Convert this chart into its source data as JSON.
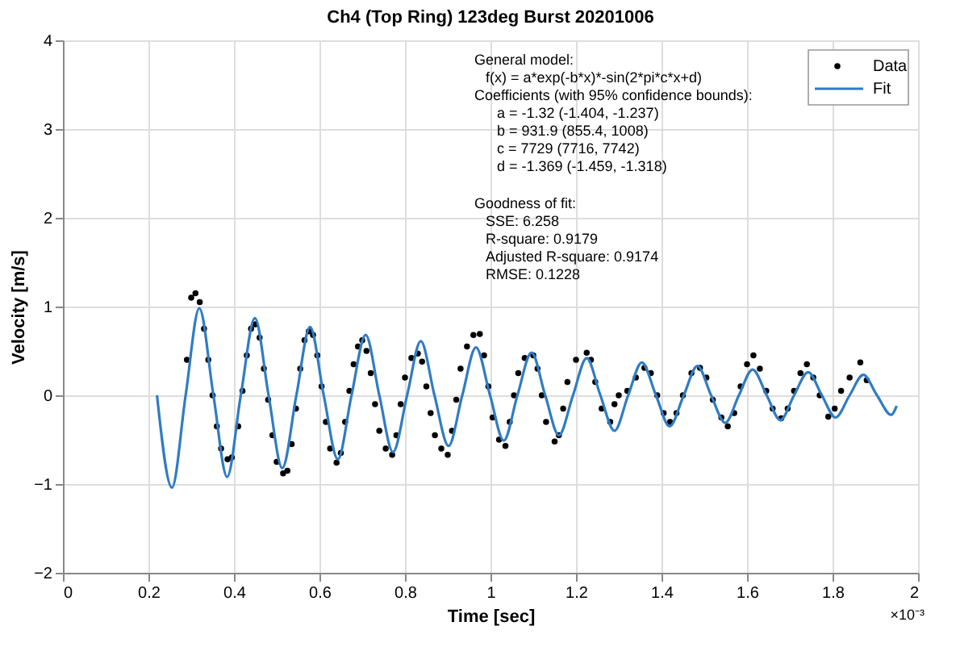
{
  "chart_data": {
    "type": "line",
    "title": "Ch4 (Top Ring) 123deg Burst 20201006",
    "xlabel": "Time [sec]",
    "ylabel": "Velocity [m/s]",
    "xlim": [
      0,
      2
    ],
    "xticks": [
      0,
      0.2,
      0.4,
      0.6,
      0.8,
      1,
      1.2,
      1.4,
      1.6,
      1.8,
      2
    ],
    "ylim": [
      -2,
      4
    ],
    "yticks": [
      -2,
      -1,
      0,
      1,
      2,
      3,
      4
    ],
    "grid": true,
    "legend": "top right",
    "series": [
      {
        "name": "Data",
        "type": "scatter",
        "color": "#000000",
        "x": [
          0.29,
          0.3,
          0.31,
          0.32,
          0.33,
          0.34,
          0.35,
          0.36,
          0.37,
          0.385,
          0.395,
          0.41,
          0.42,
          0.43,
          0.44,
          0.45,
          0.46,
          0.47,
          0.48,
          0.49,
          0.5,
          0.515,
          0.525,
          0.535,
          0.545,
          0.555,
          0.565,
          0.575,
          0.585,
          0.595,
          0.605,
          0.615,
          0.625,
          0.64,
          0.65,
          0.66,
          0.67,
          0.68,
          0.69,
          0.7,
          0.71,
          0.72,
          0.73,
          0.74,
          0.755,
          0.77,
          0.78,
          0.79,
          0.8,
          0.815,
          0.83,
          0.84,
          0.85,
          0.86,
          0.87,
          0.885,
          0.9,
          0.91,
          0.92,
          0.93,
          0.945,
          0.96,
          0.975,
          0.985,
          0.995,
          1.005,
          1.02,
          1.035,
          1.045,
          1.055,
          1.065,
          1.08,
          1.1,
          1.11,
          1.12,
          1.13,
          1.15,
          1.16,
          1.17,
          1.18,
          1.2,
          1.225,
          1.235,
          1.245,
          1.26,
          1.28,
          1.29,
          1.3,
          1.32,
          1.34,
          1.36,
          1.375,
          1.39,
          1.405,
          1.42,
          1.435,
          1.45,
          1.47,
          1.49,
          1.505,
          1.52,
          1.54,
          1.555,
          1.57,
          1.585,
          1.6,
          1.615,
          1.63,
          1.645,
          1.66,
          1.68,
          1.695,
          1.71,
          1.725,
          1.74,
          1.755,
          1.77,
          1.79,
          1.805,
          1.82,
          1.84,
          1.865,
          1.88
        ],
        "values": [
          0.4,
          1.1,
          1.15,
          1.05,
          0.75,
          0.4,
          0.0,
          -0.35,
          -0.6,
          -0.72,
          -0.7,
          -0.35,
          0.05,
          0.45,
          0.75,
          0.8,
          0.65,
          0.3,
          -0.05,
          -0.45,
          -0.75,
          -0.88,
          -0.85,
          -0.55,
          -0.15,
          0.3,
          0.62,
          0.72,
          0.68,
          0.45,
          0.1,
          -0.3,
          -0.6,
          -0.76,
          -0.65,
          -0.3,
          0.05,
          0.35,
          0.55,
          0.62,
          0.5,
          0.25,
          -0.1,
          -0.4,
          -0.6,
          -0.67,
          -0.45,
          -0.1,
          0.2,
          0.42,
          0.47,
          0.38,
          0.1,
          -0.2,
          -0.45,
          -0.6,
          -0.67,
          -0.4,
          -0.05,
          0.3,
          0.55,
          0.68,
          0.69,
          0.45,
          0.1,
          -0.25,
          -0.5,
          -0.57,
          -0.3,
          0.0,
          0.25,
          0.42,
          0.45,
          0.3,
          0.0,
          -0.3,
          -0.52,
          -0.45,
          -0.15,
          0.15,
          0.4,
          0.48,
          0.4,
          0.15,
          -0.15,
          -0.3,
          -0.1,
          0.0,
          0.05,
          0.2,
          0.31,
          0.25,
          0.0,
          -0.2,
          -0.3,
          -0.2,
          0.0,
          0.25,
          0.31,
          0.2,
          -0.05,
          -0.25,
          -0.35,
          -0.2,
          0.1,
          0.35,
          0.45,
          0.3,
          0.05,
          -0.15,
          -0.26,
          -0.15,
          0.05,
          0.25,
          0.35,
          0.2,
          0.0,
          -0.24,
          -0.15,
          0.05,
          0.2,
          0.37,
          0.17
        ]
      },
      {
        "name": "Fit",
        "color": "#2f7cc4",
        "x": [
          0.22,
          0.255,
          0.287,
          0.319,
          0.352,
          0.384,
          0.416,
          0.449,
          0.481,
          0.513,
          0.546,
          0.578,
          0.61,
          0.643,
          0.675,
          0.708,
          0.74,
          0.772,
          0.805,
          0.837,
          0.869,
          0.902,
          0.934,
          0.966,
          0.999,
          1.031,
          1.063,
          1.096,
          1.128,
          1.16,
          1.193,
          1.225,
          1.257,
          1.29,
          1.322,
          1.354,
          1.387,
          1.419,
          1.452,
          1.484,
          1.516,
          1.549,
          1.581,
          1.613,
          1.646,
          1.678,
          1.71,
          1.743,
          1.775,
          1.807,
          1.84,
          1.872,
          1.904,
          1.937,
          1.95
        ],
        "values": [
          0,
          -1.04,
          0,
          0.98,
          0,
          -0.92,
          0,
          0.87,
          0,
          -0.82,
          0,
          0.77,
          0,
          -0.72,
          0,
          0.68,
          0,
          -0.64,
          0,
          0.61,
          0,
          -0.57,
          0,
          0.54,
          0,
          -0.51,
          0,
          0.48,
          0,
          -0.45,
          0,
          0.42,
          0,
          -0.4,
          0,
          0.37,
          0,
          -0.35,
          0,
          0.33,
          0,
          -0.31,
          0,
          0.29,
          0,
          -0.28,
          0,
          0.26,
          0,
          -0.25,
          0,
          0.23,
          0,
          -0.22,
          -0.12
        ]
      }
    ],
    "annotations": [
      "General model:",
      "f(x) = a*exp(-b*x)*-sin(2*pi*c*x+d)",
      "Coefficients (with 95% confidence bounds):",
      "a = -1.32 (-1.404, -1.237)",
      "b = 931.9 (855.4, 1008)",
      "c = 7729 (7716, 7742)",
      "d = -1.369 (-1.459, -1.318)",
      "Goodness of fit:",
      "SSE: 6.258",
      "R-square: 0.9179",
      "Adjusted R-square: 0.9174",
      "RMSE: 0.1228",
      "×10⁻³"
    ]
  }
}
